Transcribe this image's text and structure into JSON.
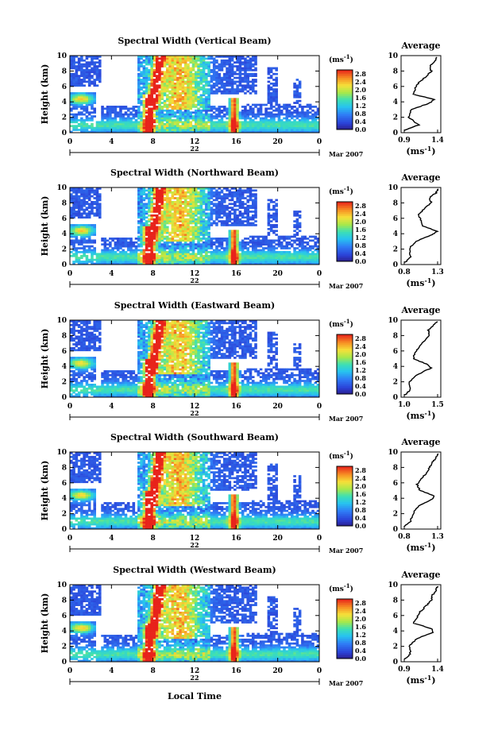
{
  "figure": {
    "xlabel": "Local Time",
    "date_label": "Mar 2007",
    "day_label": "22",
    "unit_label": "(ms",
    "unit_exp": "-1",
    "profile_title": "Average",
    "profile_xlabel": "(ms",
    "profile_xexp": "-1"
  },
  "chart_data": [
    {
      "type": "heatmap",
      "title": "Spectral Width (Vertical Beam)",
      "ylabel": "Height (km)",
      "xlabel": "",
      "x_ticks": [
        "0",
        "4",
        "8",
        "12",
        "16",
        "20",
        "0"
      ],
      "xlim": [
        0,
        24
      ],
      "y_ticks": [
        "0",
        "2",
        "4",
        "6",
        "8",
        "10"
      ],
      "ylim": [
        0,
        10
      ],
      "colorbar": {
        "ticks": [
          "0.0",
          "0.4",
          "0.8",
          "1.2",
          "1.6",
          "2.0",
          "2.4",
          "2.8"
        ],
        "range": [
          0.0,
          3.0
        ]
      },
      "profile": {
        "title": "Average",
        "x_ticks": [
          "0.9",
          "1.4"
        ],
        "xlim": [
          0.9,
          1.4
        ],
        "y_ticks": [
          "0",
          "2",
          "4",
          "6",
          "8",
          "10"
        ],
        "height": [
          0.3,
          1,
          2,
          3,
          3.8,
          4.3,
          5,
          5.8,
          6.5,
          7.3,
          8,
          8.7,
          9.3,
          9.8
        ],
        "value": [
          0.95,
          1.12,
          1.0,
          1.03,
          1.25,
          1.32,
          1.05,
          1.08,
          1.12,
          1.22,
          1.28,
          1.26,
          1.33,
          1.34
        ]
      }
    },
    {
      "type": "heatmap",
      "title": "Spectral Width (Northward Beam)",
      "ylabel": "Height (km)",
      "xlabel": "",
      "x_ticks": [
        "0",
        "4",
        "8",
        "12",
        "16",
        "20",
        "0"
      ],
      "xlim": [
        0,
        24
      ],
      "y_ticks": [
        "0",
        "2",
        "4",
        "6",
        "8",
        "10"
      ],
      "ylim": [
        0,
        10
      ],
      "colorbar": {
        "ticks": [
          "0.0",
          "0.4",
          "0.8",
          "1.2",
          "1.6",
          "2.0",
          "2.4",
          "2.8"
        ],
        "range": [
          0.0,
          3.0
        ]
      },
      "profile": {
        "title": "Average",
        "x_ticks": [
          "0.8",
          "1.3"
        ],
        "xlim": [
          0.8,
          1.3
        ],
        "y_ticks": [
          "0",
          "2",
          "4",
          "6",
          "8",
          "10"
        ],
        "height": [
          0.3,
          1,
          2,
          3,
          3.8,
          4.3,
          5,
          5.8,
          6.5,
          7.3,
          8,
          8.7,
          9.3,
          9.8
        ],
        "value": [
          0.85,
          0.92,
          0.9,
          0.98,
          1.18,
          1.25,
          1.08,
          1.05,
          1.02,
          1.1,
          1.18,
          1.16,
          1.24,
          1.27
        ]
      }
    },
    {
      "type": "heatmap",
      "title": "Spectral Width (Eastward Beam)",
      "ylabel": "Height (km)",
      "xlabel": "",
      "x_ticks": [
        "0",
        "4",
        "8",
        "12",
        "16",
        "20",
        "0"
      ],
      "xlim": [
        0,
        24
      ],
      "y_ticks": [
        "0",
        "2",
        "4",
        "6",
        "8",
        "10"
      ],
      "ylim": [
        0,
        10
      ],
      "colorbar": {
        "ticks": [
          "0.0",
          "0.4",
          "0.8",
          "1.2",
          "1.6",
          "2.0",
          "2.4",
          "2.8"
        ],
        "range": [
          0.0,
          3.0
        ]
      },
      "profile": {
        "title": "Average",
        "x_ticks": [
          "1.0",
          "1.5"
        ],
        "xlim": [
          1.0,
          1.5
        ],
        "y_ticks": [
          "0",
          "2",
          "4",
          "6",
          "8",
          "10"
        ],
        "height": [
          0.3,
          1,
          2,
          3,
          3.8,
          4.3,
          5,
          5.8,
          6.5,
          7.3,
          8,
          8.7,
          9.3,
          9.8
        ],
        "value": [
          1.05,
          1.12,
          1.1,
          1.22,
          1.38,
          1.32,
          1.15,
          1.18,
          1.22,
          1.3,
          1.36,
          1.34,
          1.4,
          1.46
        ]
      }
    },
    {
      "type": "heatmap",
      "title": "Spectral Width (Southward Beam)",
      "ylabel": "Height (km)",
      "xlabel": "",
      "x_ticks": [
        "0",
        "4",
        "8",
        "12",
        "16",
        "20",
        "0"
      ],
      "xlim": [
        0,
        24
      ],
      "y_ticks": [
        "0",
        "2",
        "4",
        "6",
        "8",
        "10"
      ],
      "ylim": [
        0,
        10
      ],
      "colorbar": {
        "ticks": [
          "0.0",
          "0.4",
          "0.8",
          "1.2",
          "1.6",
          "2.0",
          "2.4",
          "2.8"
        ],
        "range": [
          0.0,
          3.0
        ]
      },
      "profile": {
        "title": "Average",
        "x_ticks": [
          "0.8",
          "1.3"
        ],
        "xlim": [
          0.8,
          1.3
        ],
        "y_ticks": [
          "0",
          "2",
          "4",
          "6",
          "8",
          "10"
        ],
        "height": [
          0.3,
          1,
          2,
          3,
          3.8,
          4.3,
          5,
          5.8,
          6.5,
          7.3,
          8,
          8.7,
          9.3,
          9.8
        ],
        "value": [
          0.84,
          0.92,
          0.95,
          1.02,
          1.18,
          1.22,
          1.04,
          1.0,
          1.05,
          1.12,
          1.16,
          1.2,
          1.24,
          1.26
        ]
      }
    },
    {
      "type": "heatmap",
      "title": "Spectral Width (Westward Beam)",
      "ylabel": "Height (km)",
      "xlabel": "Local Time",
      "x_ticks": [
        "0",
        "4",
        "8",
        "12",
        "16",
        "20",
        "0"
      ],
      "xlim": [
        0,
        24
      ],
      "y_ticks": [
        "0",
        "2",
        "4",
        "6",
        "8",
        "10"
      ],
      "ylim": [
        0,
        10
      ],
      "colorbar": {
        "ticks": [
          "0.0",
          "0.4",
          "0.8",
          "1.2",
          "1.6",
          "2.0",
          "2.4",
          "2.8"
        ],
        "range": [
          0.0,
          3.0
        ]
      },
      "profile": {
        "title": "Average",
        "x_ticks": [
          "0.9",
          "1.4"
        ],
        "xlim": [
          0.9,
          1.4
        ],
        "y_ticks": [
          "0",
          "2",
          "4",
          "6",
          "8",
          "10"
        ],
        "height": [
          0.3,
          1,
          2,
          3,
          3.8,
          4.3,
          5,
          5.8,
          6.5,
          7.3,
          8,
          8.7,
          9.3,
          9.8
        ],
        "value": [
          0.94,
          1.02,
          1.0,
          1.1,
          1.3,
          1.28,
          1.06,
          1.1,
          1.14,
          1.22,
          1.28,
          1.3,
          1.34,
          1.36
        ]
      }
    }
  ]
}
